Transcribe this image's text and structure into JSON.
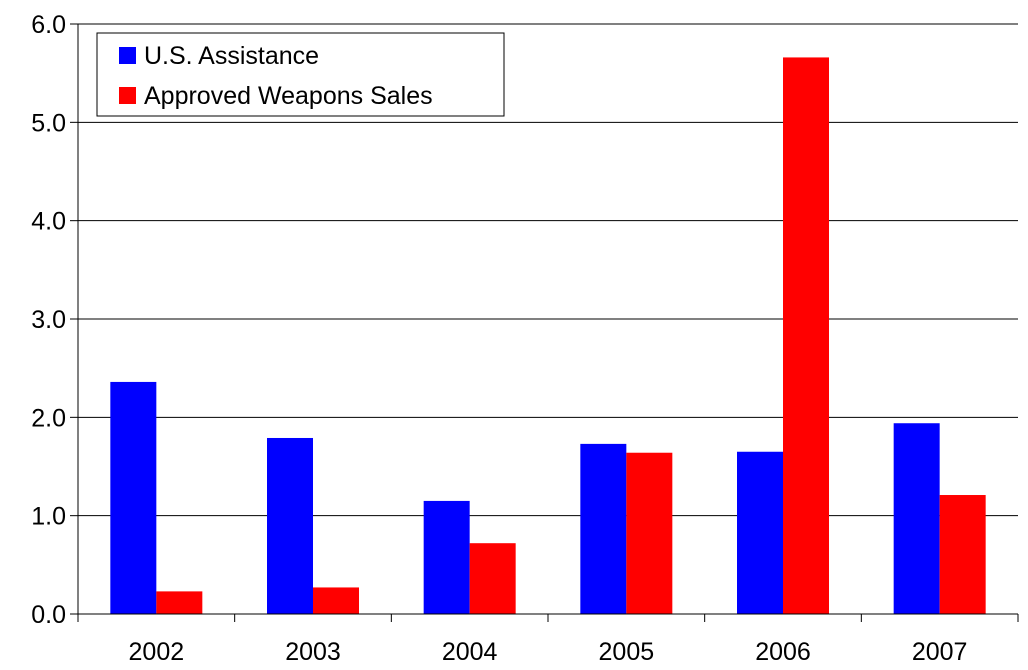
{
  "chart_data": {
    "type": "bar",
    "categories": [
      "2002",
      "2003",
      "2004",
      "2005",
      "2006",
      "2007"
    ],
    "series": [
      {
        "name": "U.S. Assistance",
        "color": "#0000ff",
        "values": [
          2.36,
          1.79,
          1.15,
          1.73,
          1.65,
          1.94
        ]
      },
      {
        "name": "Approved Weapons Sales",
        "color": "#ff0000",
        "values": [
          0.23,
          0.27,
          0.72,
          1.64,
          5.66,
          1.21
        ]
      }
    ],
    "y_ticks": [
      "0.0",
      "1.0",
      "2.0",
      "3.0",
      "4.0",
      "5.0",
      "6.0"
    ],
    "ylim": [
      0,
      6
    ],
    "grid": true,
    "legend_position": "top-left",
    "title": "",
    "xlabel": "",
    "ylabel": ""
  }
}
